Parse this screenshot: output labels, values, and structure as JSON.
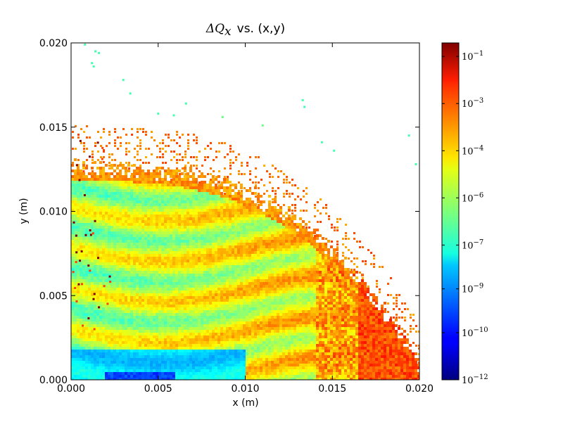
{
  "chart_data": {
    "type": "heatmap",
    "title_math": "ΔQ",
    "title_math_sub": "x",
    "title_text": "vs. (x,y)",
    "xlabel": "x (m)",
    "ylabel": "y (m)",
    "xlim": [
      0.0,
      0.02
    ],
    "ylim": [
      0.0,
      0.02
    ],
    "x_ticks": [
      "0.000",
      "0.005",
      "0.010",
      "0.015",
      "0.020"
    ],
    "y_ticks": [
      "0.000",
      "0.005",
      "0.010",
      "0.015",
      "0.020"
    ],
    "x_tick_values": [
      0.0,
      0.005,
      0.01,
      0.015,
      0.02
    ],
    "y_tick_values": [
      0.0,
      0.005,
      0.01,
      0.015,
      0.02
    ],
    "colorbar": {
      "scale": "log",
      "colormap": "jet",
      "ticks": [
        {
          "base": "10",
          "exp": "−12"
        },
        {
          "base": "10",
          "exp": "−10"
        },
        {
          "base": "10",
          "exp": "−9"
        },
        {
          "base": "10",
          "exp": "−7"
        },
        {
          "base": "10",
          "exp": "−6"
        },
        {
          "base": "10",
          "exp": "−4"
        },
        {
          "base": "10",
          "exp": "−3"
        },
        {
          "base": "10",
          "exp": "−1"
        }
      ],
      "tick_positions": [
        0.0,
        0.14,
        0.27,
        0.4,
        0.54,
        0.68,
        0.82,
        0.96
      ]
    },
    "grid": false,
    "legend": "none",
    "scatter_outliers": [
      {
        "x": 0.0008,
        "y": 0.0199,
        "color": "#44ffb0"
      },
      {
        "x": 0.0014,
        "y": 0.0195,
        "color": "#44ffb0"
      },
      {
        "x": 0.0016,
        "y": 0.0194,
        "color": "#44ffb0"
      },
      {
        "x": 0.0012,
        "y": 0.0188,
        "color": "#44ffb0"
      },
      {
        "x": 0.0013,
        "y": 0.0186,
        "color": "#44ffb0"
      },
      {
        "x": 0.003,
        "y": 0.0178,
        "color": "#44ffb0"
      },
      {
        "x": 0.0034,
        "y": 0.017,
        "color": "#44ffb0"
      },
      {
        "x": 0.005,
        "y": 0.0158,
        "color": "#44ffb0"
      },
      {
        "x": 0.0059,
        "y": 0.0157,
        "color": "#44ffb0"
      },
      {
        "x": 0.0066,
        "y": 0.0164,
        "color": "#44ffb0"
      },
      {
        "x": 0.0087,
        "y": 0.0156,
        "color": "#66ff88"
      },
      {
        "x": 0.011,
        "y": 0.0151,
        "color": "#66ff88"
      },
      {
        "x": 0.0133,
        "y": 0.0166,
        "color": "#44ffb0"
      },
      {
        "x": 0.0134,
        "y": 0.0162,
        "color": "#44ffb0"
      },
      {
        "x": 0.0144,
        "y": 0.0141,
        "color": "#44ffb0"
      },
      {
        "x": 0.0151,
        "y": 0.0136,
        "color": "#44ffb0"
      },
      {
        "x": 0.0194,
        "y": 0.0145,
        "color": "#44ffb0"
      },
      {
        "x": 0.0198,
        "y": 0.0128,
        "color": "#44ffb0"
      }
    ]
  }
}
